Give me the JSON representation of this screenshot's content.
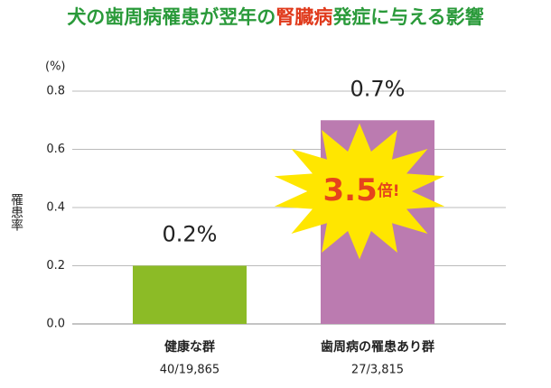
{
  "chart_data": {
    "type": "bar",
    "title": [
      "犬の歯周病罹患が翌年の",
      "腎臓病",
      "発症に与える影響"
    ],
    "title_colors": [
      "#2a9a3a",
      "#e03a1c",
      "#2a9a3a"
    ],
    "y_unit": "(%)",
    "ylabel": "罹患率",
    "categories": [
      "健康な群",
      "歯周病の罹患あり群"
    ],
    "category_notes": [
      "40/19,865",
      "27/3,815"
    ],
    "values": [
      0.2,
      0.7
    ],
    "value_labels": [
      "0.2%",
      "0.7%"
    ],
    "colors": [
      "#8cbb26",
      "#bb7bb0"
    ],
    "annotation": {
      "number": "3.5",
      "suffix": "倍!"
    },
    "ylim": [
      0,
      0.8
    ],
    "yticks": [
      {
        "value": 0,
        "label": "0.0"
      },
      0.2,
      0.4,
      0.6,
      0.8
    ],
    "grid": true
  }
}
